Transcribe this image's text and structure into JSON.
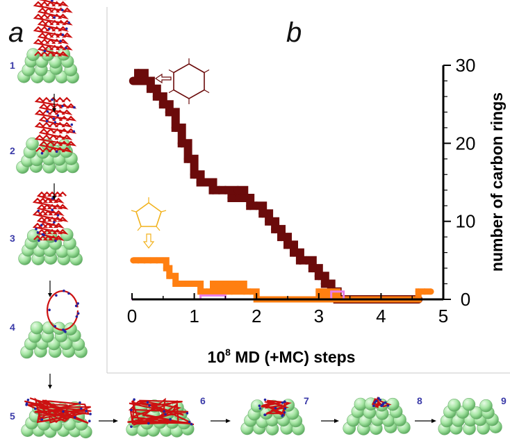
{
  "panels": {
    "a": "a",
    "b": "b"
  },
  "steps": [
    "1",
    "2",
    "3",
    "4",
    "5",
    "6",
    "7",
    "8",
    "9"
  ],
  "colors": {
    "hexagon": "#6b0b0b",
    "pentagon": "#ff7f11",
    "third": "#e87ee8",
    "ni": "#9fe3a0",
    "carbon": "#cc1111",
    "hydrogen": "#2424a0"
  },
  "chart_data": {
    "type": "line",
    "xlabel_main": "10",
    "xlabel_sup": "8",
    "xlabel_rest": " MD (+MC) steps",
    "ylabel": "number of carbon rings",
    "xlim": [
      0,
      5
    ],
    "ylim": [
      0,
      30
    ],
    "xticks": [
      0,
      1,
      2,
      3,
      4,
      5
    ],
    "yticks": [
      0,
      10,
      20,
      30
    ],
    "y_axis_side": "right",
    "series": [
      {
        "icon": "hexagon-icon",
        "color": "#6b0b0b",
        "x": [
          0.02,
          0.1,
          0.2,
          0.3,
          0.4,
          0.5,
          0.6,
          0.7,
          0.8,
          0.9,
          1.0,
          1.1,
          1.2,
          1.3,
          1.4,
          1.5,
          1.6,
          1.7,
          1.8,
          1.9,
          2.0,
          2.1,
          2.2,
          2.3,
          2.4,
          2.5,
          2.6,
          2.7,
          2.8,
          2.9,
          3.0,
          3.1,
          3.2,
          3.3,
          3.5,
          3.8,
          4.1,
          4.4,
          4.6
        ],
        "y": [
          28,
          29,
          28,
          27,
          26,
          25,
          24,
          22,
          20,
          18,
          16,
          15,
          15,
          14,
          14,
          14,
          13,
          14,
          13,
          12,
          12,
          11,
          10,
          9,
          8,
          7,
          6,
          5,
          5,
          4,
          3,
          2,
          1,
          0,
          0,
          0,
          0,
          0,
          0
        ]
      },
      {
        "icon": "pentagon-icon",
        "color": "#ff7f11",
        "x": [
          0.02,
          0.1,
          0.2,
          0.3,
          0.4,
          0.5,
          0.55,
          0.6,
          0.7,
          0.8,
          0.9,
          1.0,
          1.1,
          1.2,
          1.3,
          1.4,
          1.5,
          1.6,
          1.7,
          1.8,
          1.9,
          2.0,
          2.1,
          2.5,
          2.9,
          3.0,
          3.1,
          3.2,
          3.3,
          3.5,
          4.0,
          4.5,
          4.6,
          4.7,
          4.8
        ],
        "y": [
          5,
          5,
          5,
          5,
          5,
          5,
          4,
          3,
          2,
          2,
          2,
          2,
          1,
          1,
          2,
          1,
          2,
          1,
          2,
          1,
          1,
          0,
          0,
          0,
          0,
          1,
          0,
          1,
          0,
          0,
          0,
          0,
          1,
          1,
          1
        ]
      },
      {
        "color": "#e87ee8",
        "x": [
          0,
          0.5,
          1.0,
          1.1,
          1.5,
          2.0,
          2.5,
          3.0,
          3.2,
          3.3,
          3.4,
          3.5,
          4.0,
          4.5,
          4.8
        ],
        "y": [
          0,
          0,
          0,
          0.5,
          0,
          0,
          0,
          0,
          1,
          1,
          0,
          0,
          0,
          0,
          0
        ]
      }
    ]
  }
}
